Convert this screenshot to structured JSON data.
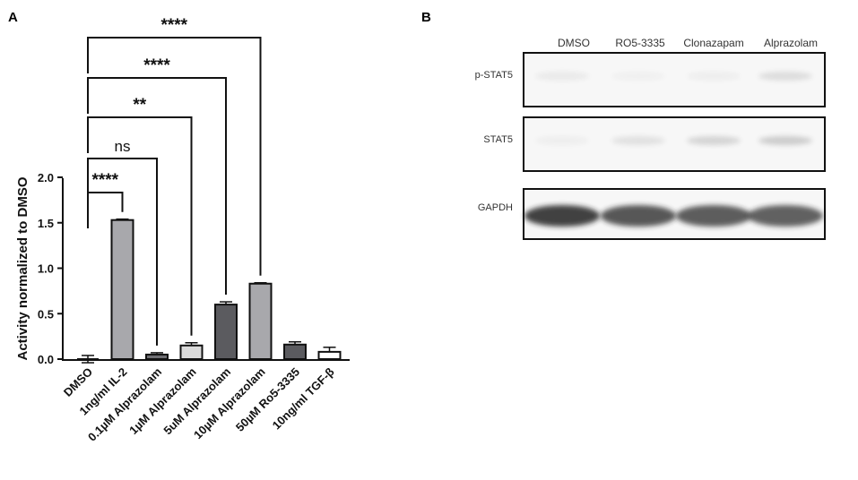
{
  "panels": {
    "a_label": "A",
    "b_label": "B"
  },
  "chart_data": {
    "type": "bar",
    "ylabel": "Activity normalized to DMSO",
    "ylim": [
      0,
      2.0
    ],
    "yticks": [
      "0.0",
      "0.5",
      "1.0",
      "1.5",
      "2.0"
    ],
    "categories": [
      "DMSO",
      "1ng/ml IL-2",
      "0.1µM Alprazolam",
      "1µM Alprazolam",
      "5uM Alprazolam",
      "10µM Alprazolam",
      "50µM Ro5-3335",
      "10ng/ml TGF-β"
    ],
    "values": [
      0.0,
      1.53,
      0.05,
      0.15,
      0.6,
      0.83,
      0.16,
      0.08
    ],
    "errors": [
      0.04,
      0.01,
      0.02,
      0.03,
      0.03,
      0.01,
      0.03,
      0.05
    ],
    "bar_colors": [
      "#ffffff",
      "#a8a8ac",
      "#6e6e72",
      "#dadada",
      "#5b5b5f",
      "#a8a8ac",
      "#5b5b5f",
      "#ffffff"
    ],
    "comparisons": [
      {
        "from": 0,
        "to": 1,
        "label": "****"
      },
      {
        "from": 0,
        "to": 2,
        "label": "ns"
      },
      {
        "from": 0,
        "to": 3,
        "label": "**"
      },
      {
        "from": 0,
        "to": 4,
        "label": "****"
      },
      {
        "from": 0,
        "to": 5,
        "label": "****"
      }
    ]
  },
  "blot": {
    "lanes": [
      "DMSO",
      "RO5-3335",
      "Clonazapam",
      "Alprazolam"
    ],
    "rows": [
      {
        "label": "p-STAT5",
        "intensity": [
          0.06,
          0.03,
          0.04,
          0.12
        ]
      },
      {
        "label": "STAT5",
        "intensity": [
          0.04,
          0.1,
          0.16,
          0.2
        ]
      },
      {
        "label": "GAPDH",
        "intensity": [
          0.85,
          0.75,
          0.72,
          0.7
        ]
      }
    ]
  }
}
